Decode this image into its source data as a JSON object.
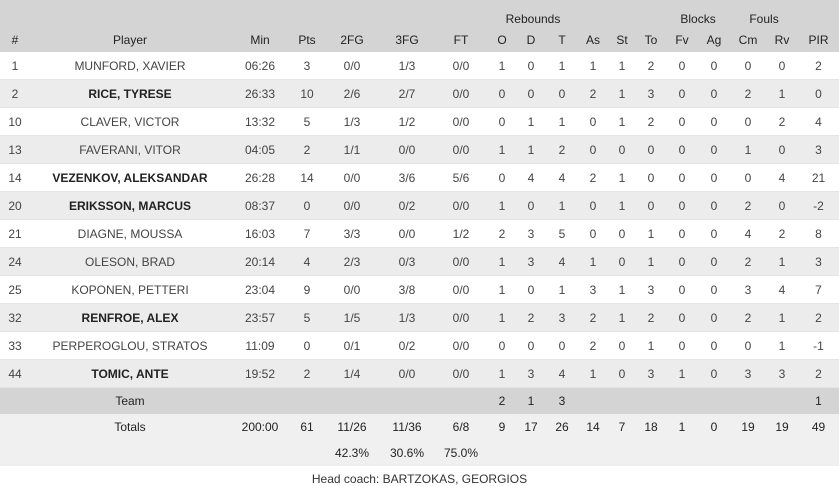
{
  "header": {
    "group_rebounds": "Rebounds",
    "group_blocks": "Blocks",
    "group_fouls": "Fouls",
    "columns": [
      "#",
      "Player",
      "Min",
      "Pts",
      "2FG",
      "3FG",
      "FT",
      "O",
      "D",
      "T",
      "As",
      "St",
      "To",
      "Fv",
      "Ag",
      "Cm",
      "Rv",
      "PIR"
    ]
  },
  "players": [
    {
      "num": "1",
      "name": "Munford, Xavier",
      "starter": false,
      "min": "06:26",
      "pts": "3",
      "fg2": "0/0",
      "fg3": "1/3",
      "ft": "0/0",
      "o": "1",
      "d": "0",
      "t": "1",
      "as": "1",
      "st": "1",
      "to": "2",
      "fv": "0",
      "ag": "0",
      "cm": "0",
      "rv": "0",
      "pir": "2"
    },
    {
      "num": "2",
      "name": "Rice, Tyrese",
      "starter": true,
      "min": "26:33",
      "pts": "10",
      "fg2": "2/6",
      "fg3": "2/7",
      "ft": "0/0",
      "o": "0",
      "d": "0",
      "t": "0",
      "as": "2",
      "st": "1",
      "to": "3",
      "fv": "0",
      "ag": "0",
      "cm": "2",
      "rv": "1",
      "pir": "0"
    },
    {
      "num": "10",
      "name": "Claver, Victor",
      "starter": false,
      "min": "13:32",
      "pts": "5",
      "fg2": "1/3",
      "fg3": "1/2",
      "ft": "0/0",
      "o": "0",
      "d": "1",
      "t": "1",
      "as": "0",
      "st": "1",
      "to": "2",
      "fv": "0",
      "ag": "0",
      "cm": "0",
      "rv": "2",
      "pir": "4"
    },
    {
      "num": "13",
      "name": "Faverani, Vitor",
      "starter": false,
      "min": "04:05",
      "pts": "2",
      "fg2": "1/1",
      "fg3": "0/0",
      "ft": "0/0",
      "o": "1",
      "d": "1",
      "t": "2",
      "as": "0",
      "st": "0",
      "to": "0",
      "fv": "0",
      "ag": "0",
      "cm": "1",
      "rv": "0",
      "pir": "3"
    },
    {
      "num": "14",
      "name": "Vezenkov, Aleksandar",
      "starter": true,
      "min": "26:28",
      "pts": "14",
      "fg2": "0/0",
      "fg3": "3/6",
      "ft": "5/6",
      "o": "0",
      "d": "4",
      "t": "4",
      "as": "2",
      "st": "1",
      "to": "0",
      "fv": "0",
      "ag": "0",
      "cm": "0",
      "rv": "4",
      "pir": "21"
    },
    {
      "num": "20",
      "name": "Eriksson, Marcus",
      "starter": true,
      "min": "08:37",
      "pts": "0",
      "fg2": "0/0",
      "fg3": "0/2",
      "ft": "0/0",
      "o": "1",
      "d": "0",
      "t": "1",
      "as": "0",
      "st": "1",
      "to": "0",
      "fv": "0",
      "ag": "0",
      "cm": "2",
      "rv": "0",
      "pir": "-2"
    },
    {
      "num": "21",
      "name": "Diagne, Moussa",
      "starter": false,
      "min": "16:03",
      "pts": "7",
      "fg2": "3/3",
      "fg3": "0/0",
      "ft": "1/2",
      "o": "2",
      "d": "3",
      "t": "5",
      "as": "0",
      "st": "0",
      "to": "1",
      "fv": "0",
      "ag": "0",
      "cm": "4",
      "rv": "2",
      "pir": "8"
    },
    {
      "num": "24",
      "name": "Oleson, Brad",
      "starter": false,
      "min": "20:14",
      "pts": "4",
      "fg2": "2/3",
      "fg3": "0/3",
      "ft": "0/0",
      "o": "1",
      "d": "3",
      "t": "4",
      "as": "1",
      "st": "0",
      "to": "1",
      "fv": "0",
      "ag": "0",
      "cm": "2",
      "rv": "1",
      "pir": "3"
    },
    {
      "num": "25",
      "name": "Koponen, Petteri",
      "starter": false,
      "min": "23:04",
      "pts": "9",
      "fg2": "0/0",
      "fg3": "3/8",
      "ft": "0/0",
      "o": "1",
      "d": "0",
      "t": "1",
      "as": "3",
      "st": "1",
      "to": "3",
      "fv": "0",
      "ag": "0",
      "cm": "3",
      "rv": "4",
      "pir": "7"
    },
    {
      "num": "32",
      "name": "Renfroe, Alex",
      "starter": true,
      "min": "23:57",
      "pts": "5",
      "fg2": "1/5",
      "fg3": "1/3",
      "ft": "0/0",
      "o": "1",
      "d": "2",
      "t": "3",
      "as": "2",
      "st": "1",
      "to": "2",
      "fv": "0",
      "ag": "0",
      "cm": "2",
      "rv": "1",
      "pir": "2"
    },
    {
      "num": "33",
      "name": "Perperoglou, Stratos",
      "starter": false,
      "min": "11:09",
      "pts": "0",
      "fg2": "0/1",
      "fg3": "0/2",
      "ft": "0/0",
      "o": "0",
      "d": "0",
      "t": "0",
      "as": "2",
      "st": "0",
      "to": "1",
      "fv": "0",
      "ag": "0",
      "cm": "0",
      "rv": "1",
      "pir": "-1"
    },
    {
      "num": "44",
      "name": "Tomic, Ante",
      "starter": true,
      "min": "19:52",
      "pts": "2",
      "fg2": "1/4",
      "fg3": "0/0",
      "ft": "0/0",
      "o": "1",
      "d": "3",
      "t": "4",
      "as": "1",
      "st": "0",
      "to": "3",
      "fv": "1",
      "ag": "0",
      "cm": "3",
      "rv": "3",
      "pir": "2"
    }
  ],
  "team": {
    "label": "Team",
    "o": "2",
    "d": "1",
    "t": "3",
    "pir": "1"
  },
  "totals": {
    "label": "Totals",
    "min": "200:00",
    "pts": "61",
    "fg2": "11/26",
    "fg3": "11/36",
    "ft": "6/8",
    "o": "9",
    "d": "17",
    "t": "26",
    "as": "14",
    "st": "7",
    "to": "18",
    "fv": "1",
    "ag": "0",
    "cm": "19",
    "rv": "19",
    "pir": "49"
  },
  "percentages": {
    "fg2": "42.3%",
    "fg3": "30.6%",
    "ft": "75.0%"
  },
  "coach": {
    "label": "Head coach:",
    "name": "Bartzokas, Georgios"
  }
}
